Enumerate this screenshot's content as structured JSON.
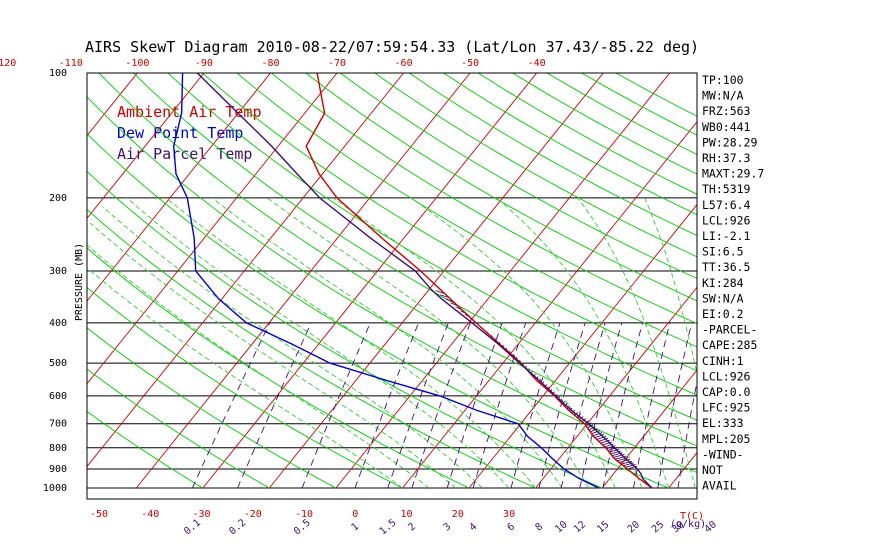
{
  "colors": {
    "temp": "#cc0000",
    "dewpoint": "#0000cc",
    "parcel": "#3d1070",
    "dry_adiabat": "#00cc00",
    "moist_adiabat": "#33cc33",
    "isotherm": "#cc0000",
    "mixing_ratio": "#3d1070",
    "isobar": "#000000",
    "cape_hatch": "#3d1070"
  },
  "chart_data": {
    "type": "skewt",
    "title": "AIRS SkewT Diagram 2010-08-22/07:59:54.33 (Lat/Lon 37.43/-85.22 deg)",
    "ylabel": "PRESSURE (MB)",
    "xlabel": "T(C)",
    "mixing_ratio_label": "(g/kg)",
    "y_scale": "log",
    "ylim": [
      1000,
      100
    ],
    "pressure_ticks": [
      {
        "p": 100,
        "label": "100"
      },
      {
        "p": 200,
        "label": "200"
      },
      {
        "p": 300,
        "label": "300"
      },
      {
        "p": 400,
        "label": "400"
      },
      {
        "p": 500,
        "label": "500"
      },
      {
        "p": 600,
        "label": "600"
      },
      {
        "p": 700,
        "label": "700"
      },
      {
        "p": 800,
        "label": "800"
      },
      {
        "p": 900,
        "label": "900"
      },
      {
        "p": 1000,
        "label": "1000"
      }
    ],
    "top_temp_labels": [
      "-120",
      "-110",
      "-100",
      "-90",
      "-80",
      "-70",
      "-60",
      "-50",
      "-40"
    ],
    "bottom_temp_labels": [
      "-50",
      "-40",
      "-30",
      "-20",
      "-10",
      "0",
      "10",
      "20",
      "30"
    ],
    "mixing_ratio_labels": [
      "0.1",
      "0.2",
      "0.5",
      "1",
      "1.5",
      "2",
      "3",
      "4",
      "6",
      "8",
      "10",
      "12",
      "15",
      "20",
      "25",
      "30",
      "40"
    ],
    "legend": [
      {
        "name": "Ambient Air Temp",
        "color_key": "temp"
      },
      {
        "name": "Dew Point Temp",
        "color_key": "dewpoint"
      },
      {
        "name": "Air Parcel Temp",
        "color_key": "parcel"
      }
    ],
    "series": [
      {
        "name": "Ambient Air Temp",
        "color_key": "temp",
        "points": [
          [
            1000,
            27.5
          ],
          [
            950,
            24.5
          ],
          [
            900,
            21.5
          ],
          [
            850,
            18.3
          ],
          [
            800,
            15.7
          ],
          [
            750,
            12.4
          ],
          [
            700,
            9.6
          ],
          [
            650,
            5.6
          ],
          [
            600,
            1.7
          ],
          [
            550,
            -2.9
          ],
          [
            500,
            -7.3
          ],
          [
            450,
            -12.8
          ],
          [
            400,
            -18.9
          ],
          [
            350,
            -25.7
          ],
          [
            300,
            -33.5
          ],
          [
            250,
            -43.3
          ],
          [
            200,
            -54.9
          ],
          [
            175,
            -60.5
          ],
          [
            150,
            -65.8
          ],
          [
            125,
            -67.0
          ],
          [
            100,
            -73.0
          ]
        ]
      },
      {
        "name": "Dew Point Temp",
        "color_key": "dewpoint",
        "points": [
          [
            1000,
            19.5
          ],
          [
            950,
            15.5
          ],
          [
            900,
            12.0
          ],
          [
            850,
            9.0
          ],
          [
            800,
            6.0
          ],
          [
            750,
            2.5
          ],
          [
            700,
            -0.4
          ],
          [
            650,
            -8.2
          ],
          [
            600,
            -15.5
          ],
          [
            550,
            -25.5
          ],
          [
            500,
            -36.0
          ],
          [
            450,
            -44.0
          ],
          [
            400,
            -53.4
          ],
          [
            350,
            -60.5
          ],
          [
            300,
            -67.3
          ],
          [
            250,
            -71.5
          ],
          [
            200,
            -77.4
          ],
          [
            175,
            -82.0
          ],
          [
            150,
            -85.7
          ],
          [
            125,
            -88.5
          ],
          [
            100,
            -93.2
          ]
        ]
      },
      {
        "name": "Air Parcel Temp",
        "color_key": "parcel",
        "points": [
          [
            1000,
            27.5
          ],
          [
            950,
            25.0
          ],
          [
            926,
            24.2
          ],
          [
            900,
            23.0
          ],
          [
            850,
            20.0
          ],
          [
            800,
            17.0
          ],
          [
            750,
            13.8
          ],
          [
            700,
            10.2
          ],
          [
            650,
            6.0
          ],
          [
            600,
            1.9
          ],
          [
            550,
            -2.5
          ],
          [
            500,
            -7.5
          ],
          [
            450,
            -13.0
          ],
          [
            400,
            -19.5
          ],
          [
            350,
            -27.0
          ],
          [
            333,
            -29.6
          ],
          [
            300,
            -34.3
          ],
          [
            250,
            -45.0
          ],
          [
            200,
            -57.5
          ],
          [
            175,
            -63.8
          ],
          [
            150,
            -71.0
          ],
          [
            125,
            -80.0
          ],
          [
            100,
            -91.0
          ]
        ]
      }
    ],
    "cape_layers": [
      [
        900,
        333
      ]
    ],
    "indices": [
      "TP:100",
      "MW:N/A",
      "FRZ:563",
      "WB0:441",
      "PW:28.29",
      "RH:37.3",
      "MAXT:29.7",
      "TH:5319",
      "L57:6.4",
      "LCL:926",
      "LI:-2.1",
      "SI:6.5",
      "TT:36.5",
      "KI:284",
      "SW:N/A",
      "EI:0.2",
      "-PARCEL-",
      "CAPE:285",
      "CINH:1",
      "LCL:926",
      "CAP:0.0",
      "LFC:925",
      "EL:333",
      "MPL:205",
      "-WIND-",
      "NOT",
      "AVAIL"
    ]
  }
}
